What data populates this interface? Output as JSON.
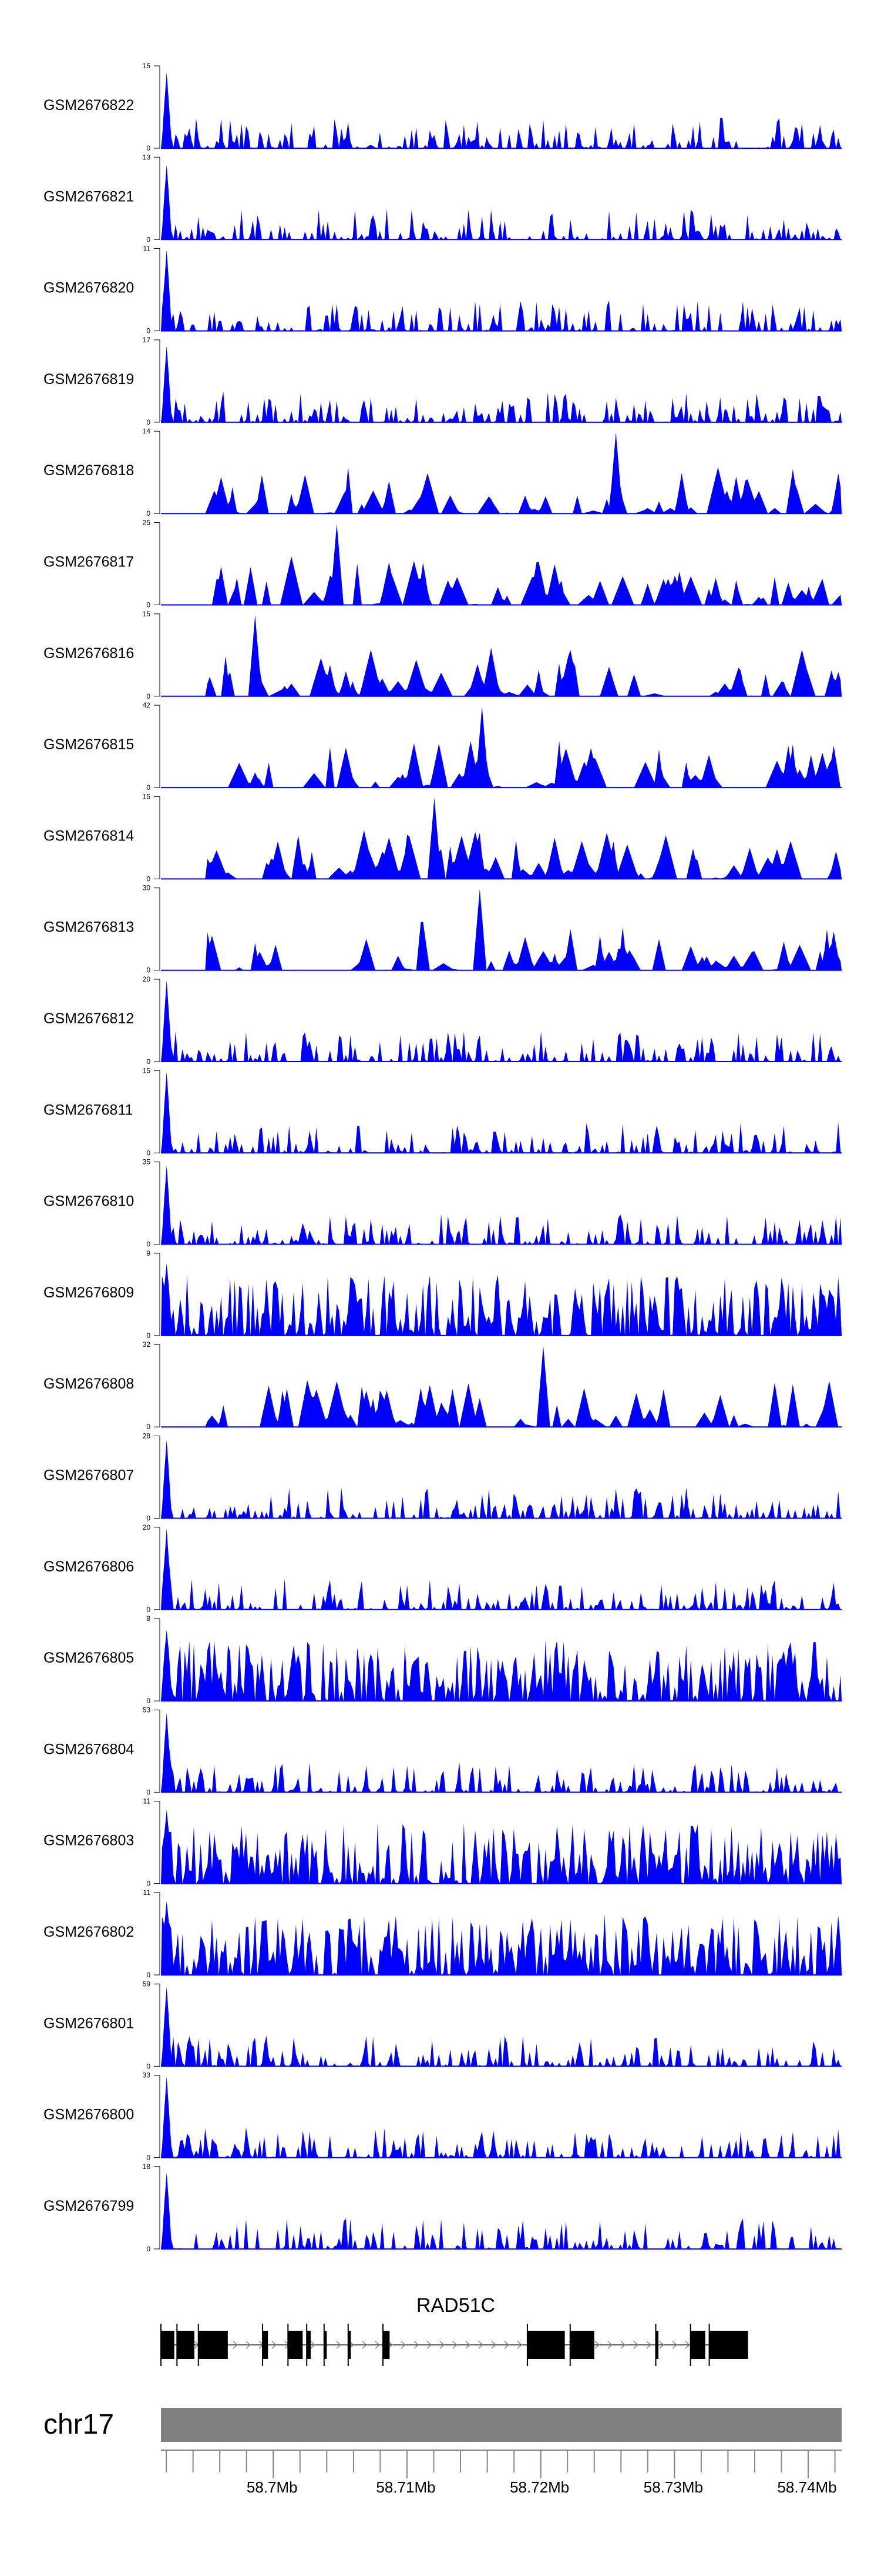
{
  "chart_data": {
    "type": "area",
    "title": "",
    "track_color": "#0000ff",
    "x_range_mb": [
      58.6916,
      58.7425
    ],
    "tracks": [
      {
        "name": "GSM2676822",
        "ymax": 15,
        "peak": 14,
        "profile": "noise"
      },
      {
        "name": "GSM2676821",
        "ymax": 13,
        "peak": 12,
        "profile": "noise"
      },
      {
        "name": "GSM2676820",
        "ymax": 11,
        "peak": 11,
        "profile": "noise"
      },
      {
        "name": "GSM2676819",
        "ymax": 17,
        "peak": 16,
        "profile": "noise"
      },
      {
        "name": "GSM2676818",
        "ymax": 14,
        "peak": 14,
        "profile": "sparse"
      },
      {
        "name": "GSM2676817",
        "ymax": 25,
        "peak": 25,
        "profile": "sparse"
      },
      {
        "name": "GSM2676816",
        "ymax": 15,
        "peak": 15,
        "profile": "sparse"
      },
      {
        "name": "GSM2676815",
        "ymax": 42,
        "peak": 42,
        "profile": "sparse"
      },
      {
        "name": "GSM2676814",
        "ymax": 15,
        "peak": 15,
        "profile": "sparse"
      },
      {
        "name": "GSM2676813",
        "ymax": 30,
        "peak": 30,
        "profile": "sparse"
      },
      {
        "name": "GSM2676812",
        "ymax": 20,
        "peak": 20,
        "profile": "noise"
      },
      {
        "name": "GSM2676811",
        "ymax": 15,
        "peak": 15,
        "profile": "noise"
      },
      {
        "name": "GSM2676810",
        "ymax": 35,
        "peak": 34,
        "profile": "noise"
      },
      {
        "name": "GSM2676809",
        "ymax": 9,
        "peak": 8,
        "profile": "dense"
      },
      {
        "name": "GSM2676808",
        "ymax": 32,
        "peak": 32,
        "profile": "sparse"
      },
      {
        "name": "GSM2676807",
        "ymax": 28,
        "peak": 27,
        "profile": "noise"
      },
      {
        "name": "GSM2676806",
        "ymax": 20,
        "peak": 20,
        "profile": "noise"
      },
      {
        "name": "GSM2676805",
        "ymax": 8,
        "peak": 7,
        "profile": "dense"
      },
      {
        "name": "GSM2676804",
        "ymax": 53,
        "peak": 52,
        "profile": "noise"
      },
      {
        "name": "GSM2676803",
        "ymax": 11,
        "peak": 10,
        "profile": "dense"
      },
      {
        "name": "GSM2676802",
        "ymax": 11,
        "peak": 10,
        "profile": "dense"
      },
      {
        "name": "GSM2676801",
        "ymax": 59,
        "peak": 58,
        "profile": "noise"
      },
      {
        "name": "GSM2676800",
        "ymax": 33,
        "peak": 33,
        "profile": "noise"
      },
      {
        "name": "GSM2676799",
        "ymax": 18,
        "peak": 17,
        "profile": "noise"
      }
    ],
    "gene": {
      "name": "RAD51C",
      "strand": "+",
      "exons_mb": [
        [
          58.6916,
          58.6926
        ],
        [
          58.6928,
          58.6941
        ],
        [
          58.6944,
          58.6966
        ],
        [
          58.6992,
          58.6996
        ],
        [
          58.7011,
          58.7022
        ],
        [
          58.7025,
          58.7028
        ],
        [
          58.7038,
          58.704
        ],
        [
          58.7056,
          58.7058
        ],
        [
          58.7082,
          58.7087
        ],
        [
          58.719,
          58.7218
        ],
        [
          58.7222,
          58.724
        ],
        [
          58.7286,
          58.7288
        ],
        [
          58.7312,
          58.7323
        ],
        [
          58.7326,
          58.7355
        ]
      ]
    },
    "ideogram": {
      "chromosome": "chr17",
      "axis_ticks_mb": [
        58.7,
        58.71,
        58.72,
        58.73,
        58.74
      ],
      "axis_tick_labels": [
        "58.7Mb",
        "58.71Mb",
        "58.72Mb",
        "58.73Mb",
        "58.74Mb"
      ],
      "minor_tick_step_mb": 0.002,
      "band_color": "#808080"
    }
  }
}
